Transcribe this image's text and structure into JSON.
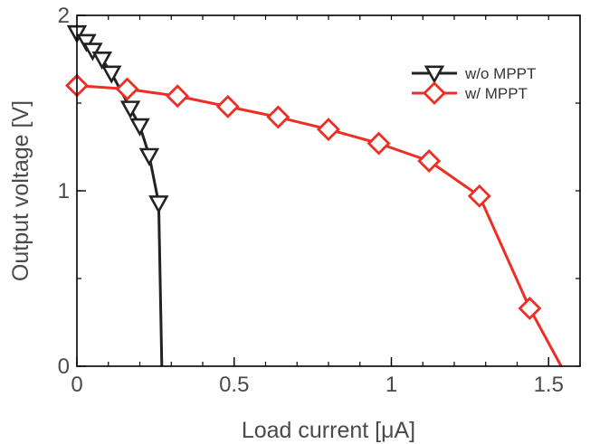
{
  "chart_data": {
    "type": "line",
    "xlabel": "Load current [μA]",
    "ylabel": "Output voltage [V]",
    "xlim": [
      0,
      1.6
    ],
    "ylim": [
      0,
      2
    ],
    "xticks": [
      0,
      0.5,
      1,
      1.5
    ],
    "xtick_labels": [
      "0",
      "0.5",
      "1",
      "1.5"
    ],
    "yticks": [
      0,
      1,
      2
    ],
    "ytick_labels": [
      "0",
      "1",
      "2"
    ],
    "x_minor_step": 0.1,
    "y_minor_step": 0.5,
    "grid": false,
    "legend_position": "top-right",
    "series": [
      {
        "name": "w/o MPPT",
        "color": "#222222",
        "marker": "triangle-down-open",
        "x": [
          0.0,
          0.03,
          0.05,
          0.08,
          0.11,
          0.17,
          0.2,
          0.23,
          0.26
        ],
        "y": [
          1.9,
          1.85,
          1.8,
          1.75,
          1.67,
          1.47,
          1.37,
          1.2,
          0.93
        ],
        "line_extends_to": [
          0.27,
          0
        ]
      },
      {
        "name": "w/ MPPT",
        "color": "#ee2d24",
        "marker": "diamond-open",
        "x": [
          0.0,
          0.16,
          0.32,
          0.48,
          0.64,
          0.8,
          0.96,
          1.12,
          1.28,
          1.44
        ],
        "y": [
          1.6,
          1.58,
          1.54,
          1.48,
          1.42,
          1.35,
          1.27,
          1.17,
          0.97,
          0.33
        ],
        "line_extends_to": [
          1.54,
          0
        ]
      }
    ]
  }
}
